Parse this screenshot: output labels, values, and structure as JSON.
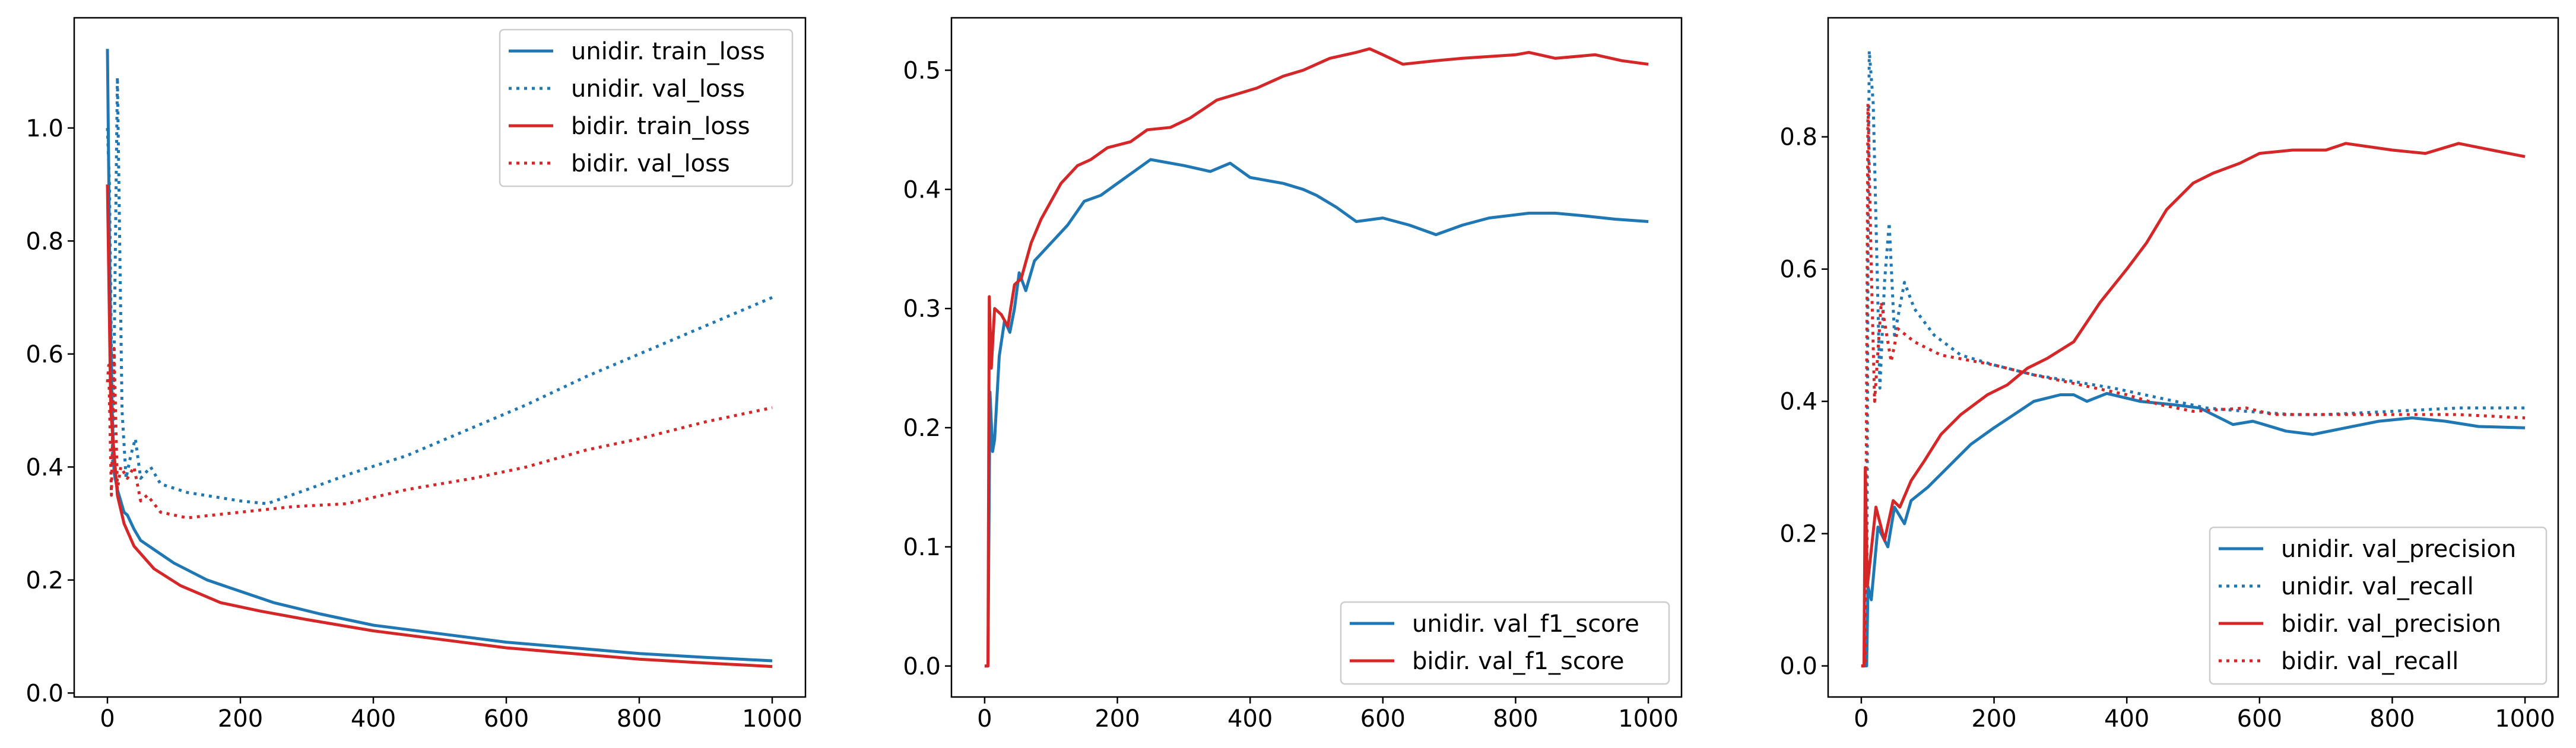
{
  "colors": {
    "unidir": "#1f77b4",
    "bidir": "#d62728"
  },
  "chart_data": [
    {
      "type": "line",
      "title": "",
      "xlabel": "",
      "ylabel": "",
      "xlim": [
        -50,
        1050
      ],
      "ylim": [
        -0.007,
        1.195
      ],
      "xticks": [
        0,
        200,
        400,
        600,
        800,
        1000
      ],
      "xtick_labels": [
        "0",
        "200",
        "400",
        "600",
        "800",
        "1000"
      ],
      "yticks": [
        0.0,
        0.2,
        0.4,
        0.6,
        0.8,
        1.0
      ],
      "ytick_labels": [
        "0.0",
        "0.2",
        "0.4",
        "0.6",
        "0.8",
        "1.0"
      ],
      "grid": false,
      "legend_placement": "top-right",
      "series": [
        {
          "name": "unidir. train_loss",
          "color": "#1f77b4",
          "style": "solid",
          "x": [
            0,
            3,
            6,
            10,
            15,
            25,
            30,
            40,
            50,
            75,
            100,
            150,
            200,
            250,
            320,
            400,
            500,
            600,
            700,
            800,
            900,
            1000
          ],
          "y": [
            1.14,
            0.8,
            0.55,
            0.39,
            0.36,
            0.32,
            0.315,
            0.29,
            0.27,
            0.25,
            0.23,
            0.2,
            0.18,
            0.16,
            0.14,
            0.12,
            0.105,
            0.09,
            0.08,
            0.07,
            0.063,
            0.057
          ]
        },
        {
          "name": "unidir. val_loss",
          "color": "#1f77b4",
          "style": "dotted",
          "x": [
            0,
            3,
            8,
            15,
            22,
            28,
            35,
            42,
            50,
            65,
            80,
            120,
            200,
            240,
            300,
            370,
            450,
            550,
            630,
            720,
            800,
            900,
            1000
          ],
          "y": [
            1.0,
            0.9,
            0.4,
            1.09,
            0.5,
            0.38,
            0.42,
            0.45,
            0.38,
            0.4,
            0.37,
            0.355,
            0.34,
            0.335,
            0.36,
            0.39,
            0.42,
            0.47,
            0.51,
            0.56,
            0.6,
            0.65,
            0.7
          ]
        },
        {
          "name": "bidir. train_loss",
          "color": "#d62728",
          "style": "solid",
          "x": [
            0,
            5,
            15,
            25,
            40,
            70,
            110,
            170,
            230,
            300,
            400,
            500,
            600,
            700,
            800,
            900,
            1000
          ],
          "y": [
            0.9,
            0.5,
            0.35,
            0.3,
            0.26,
            0.22,
            0.19,
            0.16,
            0.145,
            0.13,
            0.11,
            0.095,
            0.08,
            0.07,
            0.06,
            0.053,
            0.047
          ]
        },
        {
          "name": "bidir. val_loss",
          "color": "#d62728",
          "style": "dotted",
          "x": [
            0,
            2,
            6,
            10,
            15,
            20,
            30,
            40,
            50,
            60,
            80,
            120,
            200,
            280,
            360,
            450,
            550,
            630,
            720,
            800,
            900,
            1000
          ],
          "y": [
            0.55,
            0.58,
            0.35,
            0.61,
            0.36,
            0.4,
            0.38,
            0.4,
            0.34,
            0.35,
            0.32,
            0.31,
            0.32,
            0.33,
            0.335,
            0.36,
            0.38,
            0.4,
            0.43,
            0.45,
            0.48,
            0.505
          ]
        }
      ]
    },
    {
      "type": "line",
      "title": "",
      "xlabel": "",
      "ylabel": "",
      "xlim": [
        -50,
        1050
      ],
      "ylim": [
        -0.026,
        0.544
      ],
      "xticks": [
        0,
        200,
        400,
        600,
        800,
        1000
      ],
      "xtick_labels": [
        "0",
        "200",
        "400",
        "600",
        "800",
        "1000"
      ],
      "yticks": [
        0.0,
        0.1,
        0.2,
        0.3,
        0.4,
        0.5
      ],
      "ytick_labels": [
        "0.0",
        "0.1",
        "0.2",
        "0.3",
        "0.4",
        "0.5"
      ],
      "grid": false,
      "legend_placement": "bottom-right",
      "series": [
        {
          "name": "unidir. val_f1_score",
          "color": "#1f77b4",
          "style": "solid",
          "x": [
            0,
            5,
            8,
            12,
            15,
            22,
            30,
            38,
            45,
            52,
            62,
            75,
            100,
            125,
            150,
            175,
            200,
            225,
            250,
            300,
            340,
            370,
            400,
            450,
            480,
            500,
            530,
            560,
            600,
            640,
            680,
            720,
            760,
            820,
            860,
            900,
            950,
            1000
          ],
          "y": [
            0,
            0,
            0.23,
            0.18,
            0.19,
            0.26,
            0.29,
            0.28,
            0.3,
            0.33,
            0.315,
            0.34,
            0.355,
            0.37,
            0.39,
            0.395,
            0.405,
            0.415,
            0.425,
            0.42,
            0.415,
            0.422,
            0.41,
            0.405,
            0.4,
            0.395,
            0.385,
            0.373,
            0.376,
            0.37,
            0.362,
            0.37,
            0.376,
            0.38,
            0.38,
            0.378,
            0.375,
            0.373
          ]
        },
        {
          "name": "bidir. val_f1_score",
          "color": "#d62728",
          "style": "solid",
          "x": [
            0,
            5,
            7,
            10,
            15,
            25,
            35,
            45,
            55,
            70,
            85,
            100,
            115,
            140,
            160,
            185,
            220,
            245,
            280,
            310,
            350,
            380,
            410,
            450,
            480,
            520,
            560,
            580,
            600,
            630,
            680,
            720,
            800,
            820,
            860,
            920,
            960,
            1000
          ],
          "y": [
            0,
            0,
            0.31,
            0.25,
            0.3,
            0.295,
            0.285,
            0.32,
            0.325,
            0.355,
            0.375,
            0.39,
            0.405,
            0.42,
            0.425,
            0.435,
            0.44,
            0.45,
            0.452,
            0.46,
            0.475,
            0.48,
            0.485,
            0.495,
            0.5,
            0.51,
            0.515,
            0.518,
            0.513,
            0.505,
            0.508,
            0.51,
            0.513,
            0.515,
            0.51,
            0.513,
            0.508,
            0.505
          ]
        }
      ]
    },
    {
      "type": "line",
      "title": "",
      "xlabel": "",
      "ylabel": "",
      "xlim": [
        -50,
        1050
      ],
      "ylim": [
        -0.047,
        0.98
      ],
      "xticks": [
        0,
        200,
        400,
        600,
        800,
        1000
      ],
      "xtick_labels": [
        "0",
        "200",
        "400",
        "600",
        "800",
        "1000"
      ],
      "yticks": [
        0.0,
        0.2,
        0.4,
        0.6,
        0.8
      ],
      "ytick_labels": [
        "0.0",
        "0.2",
        "0.4",
        "0.6",
        "0.8"
      ],
      "grid": false,
      "legend_placement": "bottom-right",
      "series": [
        {
          "name": "unidir. val_precision",
          "color": "#1f77b4",
          "style": "solid",
          "x": [
            0,
            8,
            10,
            15,
            25,
            40,
            50,
            65,
            75,
            100,
            130,
            165,
            200,
            230,
            260,
            300,
            320,
            340,
            370,
            420,
            470,
            510,
            560,
            590,
            640,
            680,
            730,
            780,
            830,
            880,
            930,
            1000
          ],
          "y": [
            0,
            0,
            0.12,
            0.1,
            0.21,
            0.18,
            0.24,
            0.215,
            0.25,
            0.27,
            0.3,
            0.335,
            0.36,
            0.38,
            0.4,
            0.41,
            0.41,
            0.4,
            0.412,
            0.4,
            0.395,
            0.39,
            0.365,
            0.37,
            0.355,
            0.35,
            0.36,
            0.37,
            0.375,
            0.37,
            0.362,
            0.36
          ]
        },
        {
          "name": "unidir. val_recall",
          "color": "#1f77b4",
          "style": "dotted",
          "x": [
            0,
            8,
            10,
            12,
            18,
            28,
            35,
            42,
            50,
            65,
            80,
            110,
            150,
            200,
            260,
            320,
            380,
            450,
            520,
            580,
            650,
            700,
            800,
            900,
            1000
          ],
          "y": [
            0,
            0,
            0.6,
            0.93,
            0.85,
            0.42,
            0.58,
            0.67,
            0.5,
            0.58,
            0.54,
            0.5,
            0.47,
            0.455,
            0.44,
            0.43,
            0.42,
            0.405,
            0.39,
            0.385,
            0.38,
            0.38,
            0.385,
            0.39,
            0.39
          ]
        },
        {
          "name": "bidir. val_precision",
          "color": "#d62728",
          "style": "solid",
          "x": [
            0,
            4,
            6,
            9,
            22,
            35,
            48,
            58,
            75,
            95,
            120,
            150,
            190,
            220,
            250,
            280,
            320,
            360,
            400,
            430,
            460,
            500,
            530,
            570,
            600,
            650,
            700,
            730,
            800,
            850,
            900,
            950,
            1000
          ],
          "y": [
            0,
            0,
            0.3,
            0.12,
            0.24,
            0.19,
            0.25,
            0.24,
            0.28,
            0.31,
            0.35,
            0.38,
            0.41,
            0.425,
            0.45,
            0.465,
            0.49,
            0.55,
            0.6,
            0.64,
            0.69,
            0.73,
            0.745,
            0.76,
            0.775,
            0.78,
            0.78,
            0.79,
            0.78,
            0.775,
            0.79,
            0.78,
            0.77
          ]
        },
        {
          "name": "bidir. val_recall",
          "color": "#d62728",
          "style": "dotted",
          "x": [
            0,
            6,
            10,
            15,
            20,
            30,
            45,
            55,
            80,
            120,
            200,
            260,
            330,
            400,
            450,
            500,
            580,
            620,
            700,
            800,
            900,
            1000
          ],
          "y": [
            0,
            0,
            0.85,
            0.6,
            0.4,
            0.55,
            0.46,
            0.51,
            0.49,
            0.47,
            0.455,
            0.44,
            0.425,
            0.41,
            0.395,
            0.385,
            0.39,
            0.38,
            0.38,
            0.38,
            0.38,
            0.375
          ]
        }
      ]
    }
  ]
}
